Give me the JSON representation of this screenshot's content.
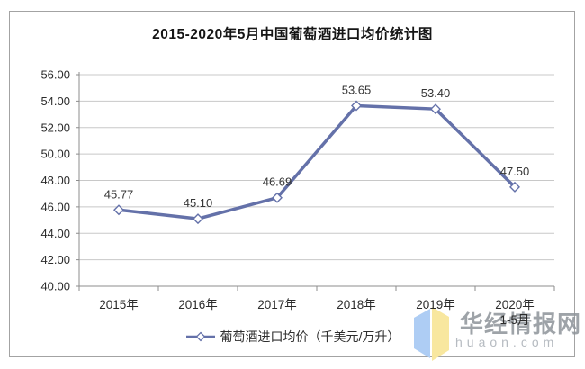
{
  "chart_data": {
    "type": "line",
    "title": "2015-2020年5月中国葡萄酒进口均价统计图",
    "categories": [
      "2015年",
      "2016年",
      "2017年",
      "2018年",
      "2019年",
      "2020年"
    ],
    "category_sublabels": [
      "",
      "",
      "",
      "",
      "",
      "1-5月"
    ],
    "series": [
      {
        "name": "葡萄酒进口均价（千美元/万升）",
        "values": [
          45.77,
          45.1,
          46.69,
          53.65,
          53.4,
          47.5
        ]
      }
    ],
    "data_labels": [
      "45.77",
      "45.10",
      "46.69",
      "53.65",
      "53.40",
      "47.50"
    ],
    "xlabel": "",
    "ylabel": "",
    "ylim": [
      40,
      56
    ],
    "ytick_step": 2,
    "ytick_labels": [
      "40.00",
      "42.00",
      "44.00",
      "46.00",
      "48.00",
      "50.00",
      "52.00",
      "54.00",
      "56.00"
    ],
    "grid": true,
    "legend_position": "bottom",
    "marker": "diamond-open"
  },
  "colors": {
    "line": "#6471a9",
    "grid": "#c8c8c8",
    "axis": "#8c8c8c",
    "text": "#2e2e2e",
    "border": "#a3a3a3"
  },
  "watermark": {
    "site_name": "华经情报网",
    "domain": "huaon.com",
    "logo_left_color": "#aecdf4",
    "logo_right_color": "#f8e79f"
  }
}
